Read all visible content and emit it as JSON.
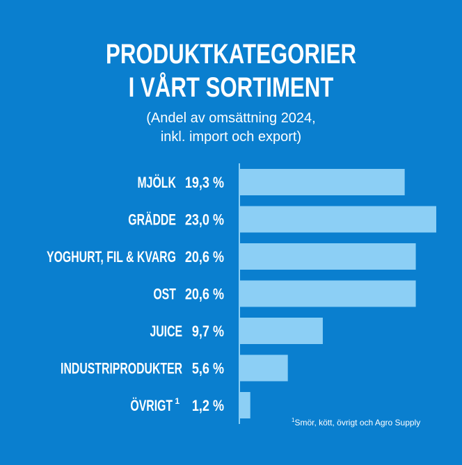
{
  "header": {
    "title_line1": "PRODUKTKATEGORIER",
    "title_line2": "I VÅRT SORTIMENT",
    "subtitle_line1": "(Andel av omsättning 2024,",
    "subtitle_line2": "inkl. import och export)"
  },
  "chart_data": {
    "type": "bar",
    "orientation": "horizontal",
    "title": "PRODUKTKATEGORIER I VÅRT SORTIMENT",
    "subtitle": "(Andel av omsättning 2024, inkl. import och export)",
    "categories": [
      "MJÖLK",
      "GRÄDDE",
      "YOGHURT, FIL & KVARG",
      "OST",
      "JUICE",
      "INDUSTRIPRODUKTER",
      "ÖVRIGT"
    ],
    "values": [
      19.3,
      23.0,
      20.6,
      20.6,
      9.7,
      5.6,
      1.2
    ],
    "value_labels": [
      "19,3 %",
      "23,0 %",
      "20,6 %",
      "20,6 %",
      "9,7 %",
      "5,6 %",
      "1,2 %"
    ],
    "footnote_markers": [
      "",
      "",
      "",
      "",
      "",
      "",
      "1"
    ],
    "unit": "%",
    "xlim": [
      0,
      23.0
    ],
    "grid": false,
    "legend": "none",
    "colors": {
      "bar": "#8ccff5",
      "axis": "#8ccff5",
      "background": "#0a7fcf",
      "text": "#ffffff"
    }
  },
  "footnote": {
    "marker": "1",
    "text": "Smör, kött, övrigt och Agro Supply"
  }
}
